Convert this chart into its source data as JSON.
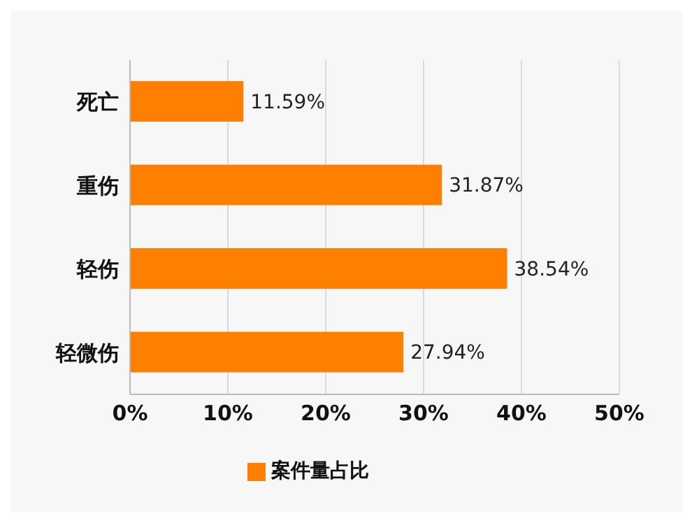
{
  "chart_data": {
    "type": "bar",
    "orientation": "horizontal",
    "categories": [
      "死亡",
      "重伤",
      "轻伤",
      "轻微伤"
    ],
    "series": [
      {
        "name": "案件量占比",
        "color": "#ff8000",
        "values": [
          11.59,
          31.87,
          38.54,
          27.94
        ],
        "value_labels": [
          "11.59%",
          "31.87%",
          "38.54%",
          "27.94%"
        ]
      }
    ],
    "xlim": [
      0,
      50
    ],
    "xticks": [
      {
        "value": 0,
        "label": "0%"
      },
      {
        "value": 10,
        "label": "10%"
      },
      {
        "value": 20,
        "label": "20%"
      },
      {
        "value": 30,
        "label": "30%"
      },
      {
        "value": 40,
        "label": "40%"
      },
      {
        "value": 50,
        "label": "50%"
      }
    ],
    "grid": "x",
    "legend": "bottom"
  }
}
